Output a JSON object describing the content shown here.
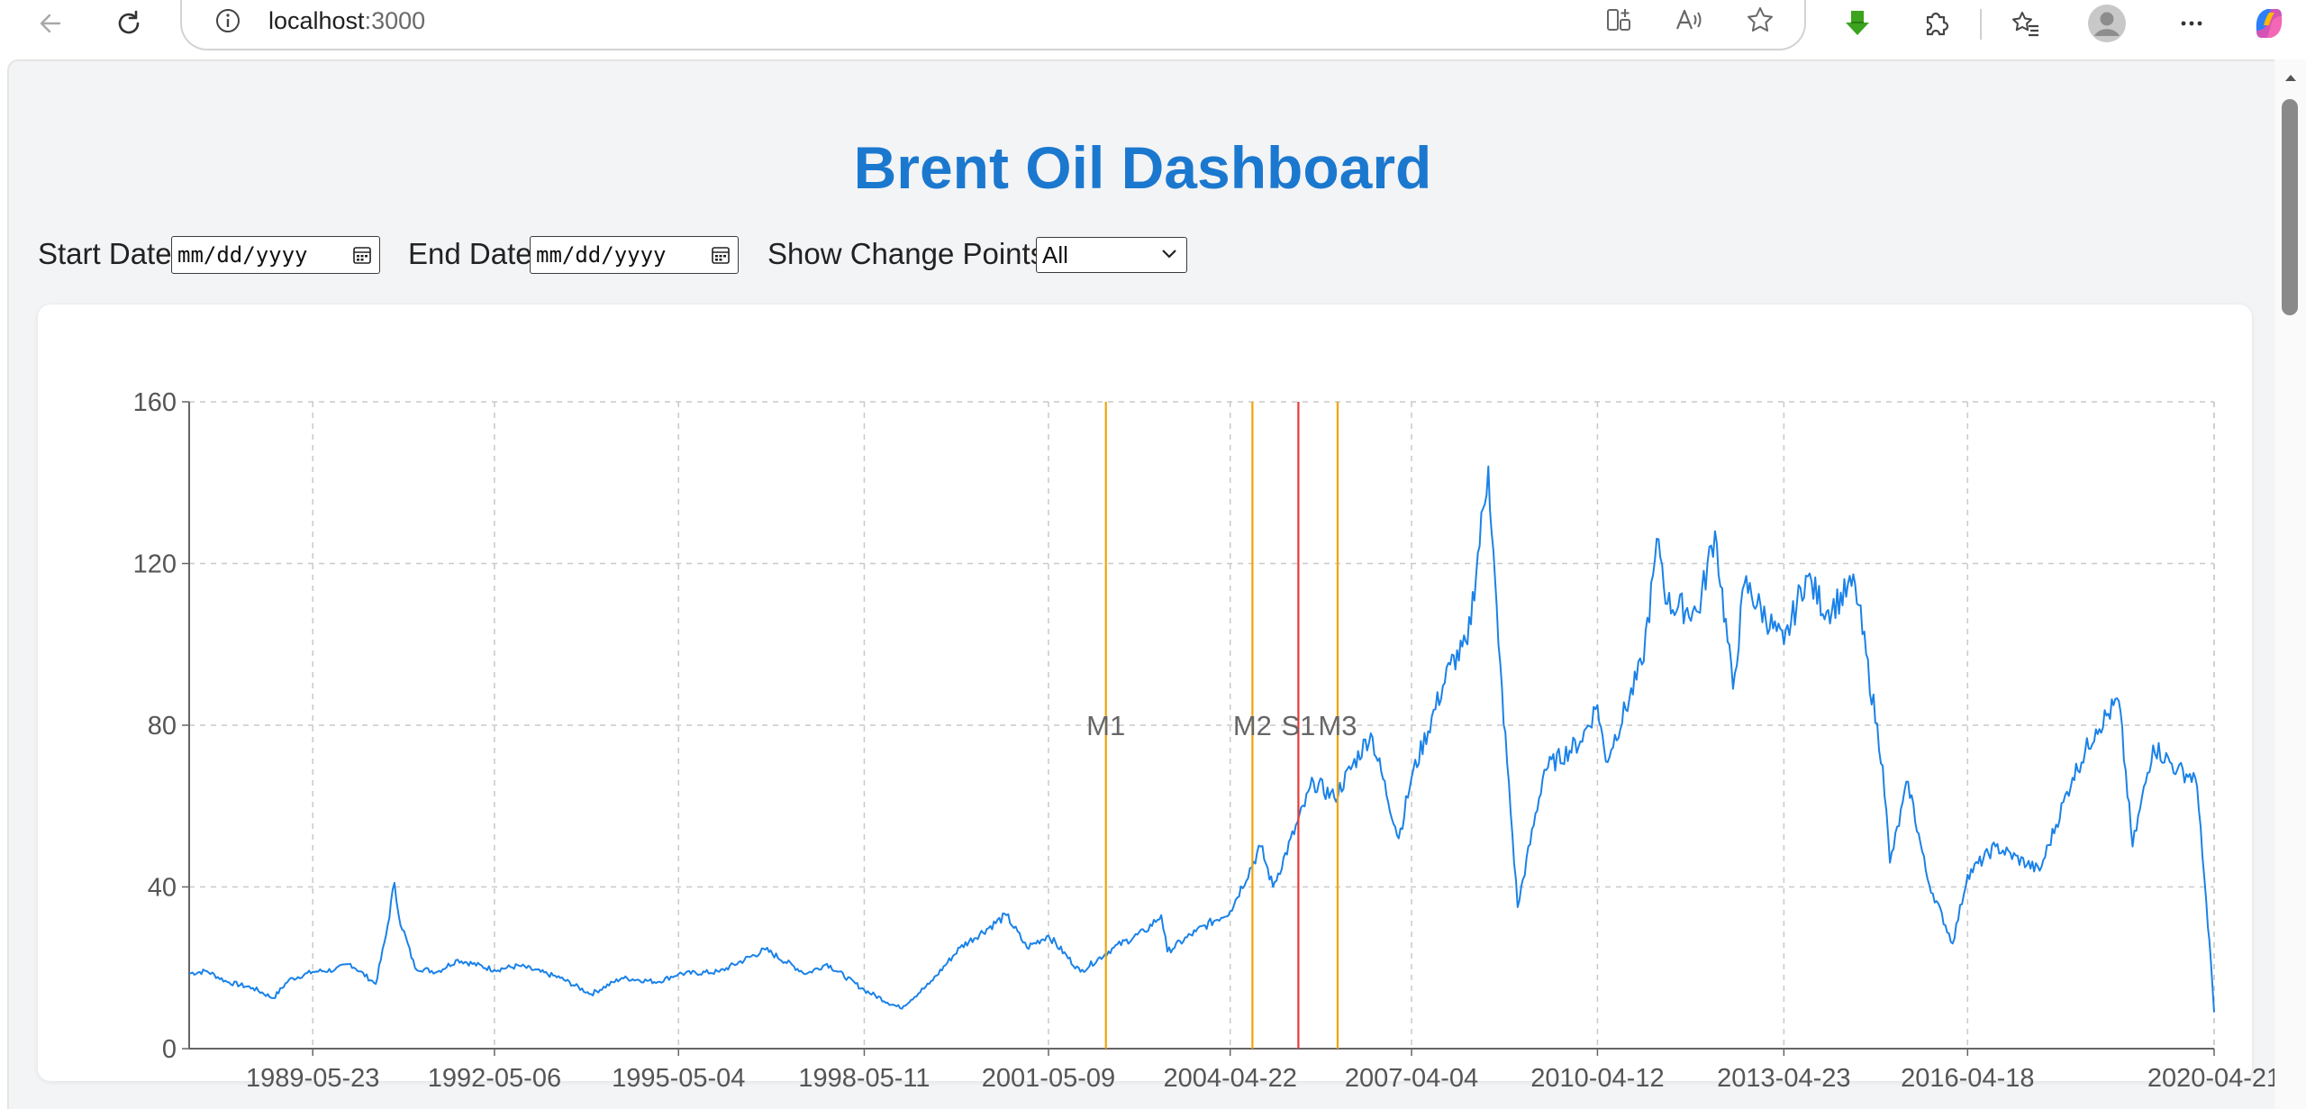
{
  "browser": {
    "url_host": "localhost",
    "url_port": ":3000",
    "icons": [
      "back-arrow-icon",
      "reload-icon",
      "info-icon",
      "split-screen-icon",
      "read-aloud-icon",
      "favorite-star-icon",
      "download-icon",
      "extensions-icon",
      "favorites-icon",
      "profile-icon",
      "more-icon",
      "copilot-icon"
    ]
  },
  "page": {
    "title": "Brent Oil Dashboard",
    "title_color": "#1b78cf"
  },
  "controls": {
    "start_label": "Start Date:",
    "start_placeholder": "mm/dd/yyyy",
    "end_label": "End Date:",
    "end_placeholder": "mm/dd/yyyy",
    "cp_label": "Show Change Points:",
    "cp_selected": "All"
  },
  "chart_data": {
    "type": "line",
    "x_start": "1987-05-20",
    "x_end": "2020-04-21",
    "x_tick_labels": [
      "1989-05-23",
      "1992-05-06",
      "1995-05-04",
      "1998-05-11",
      "2001-05-09",
      "2004-04-22",
      "2007-04-04",
      "2010-04-12",
      "2013-04-23",
      "2016-04-18",
      "2020-04-21"
    ],
    "ylim": [
      0,
      160
    ],
    "y_ticks": [
      0,
      40,
      80,
      120,
      160
    ],
    "grid": true,
    "line_color": "#1a82e8",
    "series": [
      {
        "points": [
          [
            "1987-05-20",
            18.6
          ],
          [
            "1987-09-01",
            19.2
          ],
          [
            "1988-01-01",
            16.5
          ],
          [
            "1988-06-01",
            15.0
          ],
          [
            "1988-10-01",
            12.5
          ],
          [
            "1989-01-01",
            17.0
          ],
          [
            "1989-05-23",
            19.0
          ],
          [
            "1989-10-01",
            19.5
          ],
          [
            "1990-01-01",
            21.0
          ],
          [
            "1990-06-01",
            16.0
          ],
          [
            "1990-08-01",
            28.0
          ],
          [
            "1990-09-20",
            41.0
          ],
          [
            "1990-10-15",
            33.0
          ],
          [
            "1991-01-20",
            20.0
          ],
          [
            "1991-06-01",
            19.0
          ],
          [
            "1991-10-01",
            22.0
          ],
          [
            "1992-05-06",
            19.5
          ],
          [
            "1992-10-01",
            20.5
          ],
          [
            "1993-06-01",
            17.5
          ],
          [
            "1993-12-01",
            13.5
          ],
          [
            "1994-06-01",
            17.5
          ],
          [
            "1995-01-01",
            16.5
          ],
          [
            "1995-05-04",
            18.5
          ],
          [
            "1996-01-01",
            19.0
          ],
          [
            "1996-10-01",
            24.5
          ],
          [
            "1997-06-01",
            18.5
          ],
          [
            "1997-10-01",
            21.0
          ],
          [
            "1998-05-11",
            14.5
          ],
          [
            "1998-12-10",
            10.0
          ],
          [
            "1999-06-01",
            16.0
          ],
          [
            "1999-12-01",
            25.0
          ],
          [
            "2000-09-01",
            33.0
          ],
          [
            "2001-01-01",
            25.0
          ],
          [
            "2001-05-09",
            28.0
          ],
          [
            "2001-11-15",
            19.0
          ],
          [
            "2002-06-01",
            25.0
          ],
          [
            "2002-12-01",
            29.0
          ],
          [
            "2003-03-10",
            33.0
          ],
          [
            "2003-04-15",
            24.0
          ],
          [
            "2003-10-01",
            29.0
          ],
          [
            "2004-04-22",
            34.0
          ],
          [
            "2004-10-20",
            50.0
          ],
          [
            "2005-01-01",
            40.0
          ],
          [
            "2005-08-30",
            66.0
          ],
          [
            "2006-01-01",
            62.0
          ],
          [
            "2006-08-05",
            78.0
          ],
          [
            "2007-01-18",
            52.0
          ],
          [
            "2007-04-04",
            67.0
          ],
          [
            "2007-11-20",
            95.0
          ],
          [
            "2008-03-01",
            100.0
          ],
          [
            "2008-07-03",
            144.0
          ],
          [
            "2008-09-01",
            100.0
          ],
          [
            "2008-12-24",
            35.0
          ],
          [
            "2009-06-01",
            69.0
          ],
          [
            "2010-01-01",
            76.0
          ],
          [
            "2010-04-12",
            85.0
          ],
          [
            "2010-06-01",
            71.0
          ],
          [
            "2011-01-01",
            95.0
          ],
          [
            "2011-04-10",
            126.0
          ],
          [
            "2011-06-01",
            110.0
          ],
          [
            "2011-12-01",
            108.0
          ],
          [
            "2012-03-10",
            128.0
          ],
          [
            "2012-06-25",
            89.0
          ],
          [
            "2012-09-01",
            115.0
          ],
          [
            "2013-04-23",
            100.0
          ],
          [
            "2013-09-01",
            117.0
          ],
          [
            "2014-01-01",
            108.0
          ],
          [
            "2014-06-20",
            115.0
          ],
          [
            "2014-12-01",
            70.0
          ],
          [
            "2015-01-13",
            46.0
          ],
          [
            "2015-05-01",
            66.0
          ],
          [
            "2015-08-24",
            42.0
          ],
          [
            "2016-01-20",
            26.0
          ],
          [
            "2016-04-18",
            43.0
          ],
          [
            "2016-10-01",
            50.0
          ],
          [
            "2017-06-20",
            44.0
          ],
          [
            "2018-01-01",
            67.0
          ],
          [
            "2018-05-20",
            79.0
          ],
          [
            "2018-10-03",
            86.0
          ],
          [
            "2018-12-24",
            50.0
          ],
          [
            "2019-04-25",
            75.0
          ],
          [
            "2019-09-16",
            69.0
          ],
          [
            "2019-12-31",
            67.0
          ],
          [
            "2020-02-01",
            55.0
          ],
          [
            "2020-03-15",
            30.0
          ],
          [
            "2020-04-01",
            22.0
          ],
          [
            "2020-04-21",
            9.0
          ]
        ]
      }
    ],
    "change_points": [
      {
        "label": "M1",
        "date": "2002-04-15",
        "color": "#f0a30a"
      },
      {
        "label": "M2",
        "date": "2004-09-01",
        "color": "#f0a30a"
      },
      {
        "label": "S1",
        "date": "2005-06-01",
        "color": "#e53935"
      },
      {
        "label": "M3",
        "date": "2006-01-20",
        "color": "#f0a30a"
      }
    ]
  }
}
